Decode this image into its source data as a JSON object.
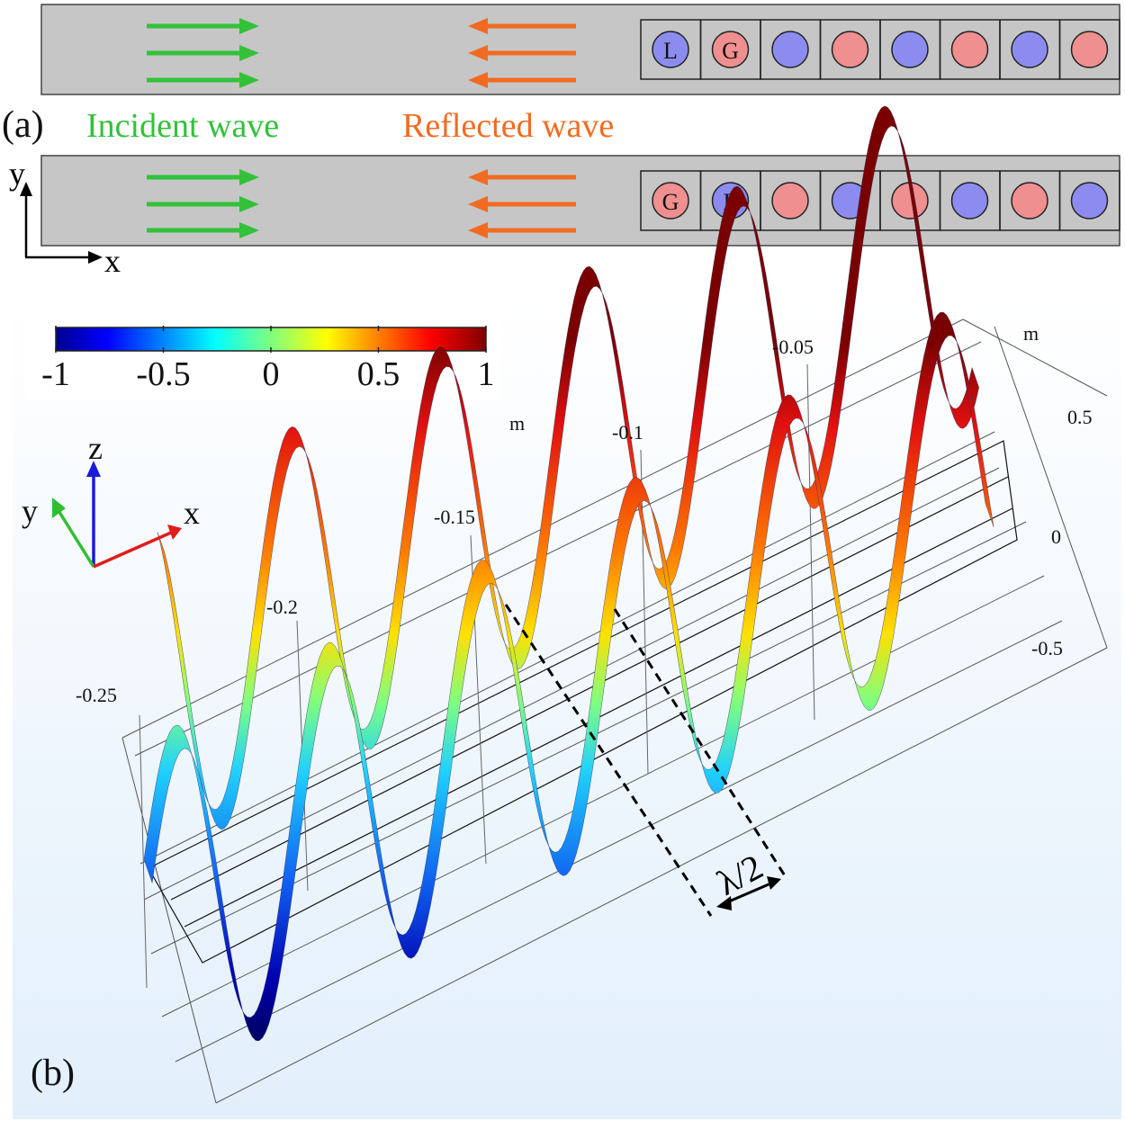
{
  "panel_a": {
    "label": "(a)",
    "incident_label": "Incident wave",
    "reflected_label": "Reflected wave",
    "axis_y": "y",
    "axis_x": "x",
    "colors": {
      "channel": "#c6c6c6",
      "incident": "#33c13a",
      "reflected": "#f26b21",
      "blue_cell": "#8c8cf0",
      "red_cell": "#ef8f8f"
    },
    "rows": [
      {
        "cells": [
          "L",
          "G",
          "",
          "",
          "",
          "",
          "",
          ""
        ],
        "pattern": [
          "blue",
          "red",
          "blue",
          "red",
          "blue",
          "red",
          "blue",
          "red"
        ]
      },
      {
        "cells": [
          "G",
          "L",
          "",
          "",
          "",
          "",
          "",
          ""
        ],
        "pattern": [
          "red",
          "blue",
          "red",
          "blue",
          "red",
          "blue",
          "red",
          "blue"
        ]
      }
    ]
  },
  "panel_b": {
    "label": "(b)",
    "colorbar": {
      "ticks": [
        "-1",
        "-0.5",
        "0",
        "0.5",
        "1"
      ],
      "colormap": "jet"
    },
    "triad": {
      "z": "z",
      "y": "y",
      "x": "x",
      "z_color": "#1a1ad8",
      "y_color": "#2fbf2f",
      "x_color": "#e01c1c"
    },
    "x_axis_ticks": [
      "-0.25",
      "-0.2",
      "-0.15",
      "-0.1",
      "-0.05"
    ],
    "x_axis_unit": "m",
    "z_axis_ticks": [
      "0.5",
      "0",
      "-0.5"
    ],
    "z_axis_unit": "m",
    "annotation": "λ/2"
  }
}
